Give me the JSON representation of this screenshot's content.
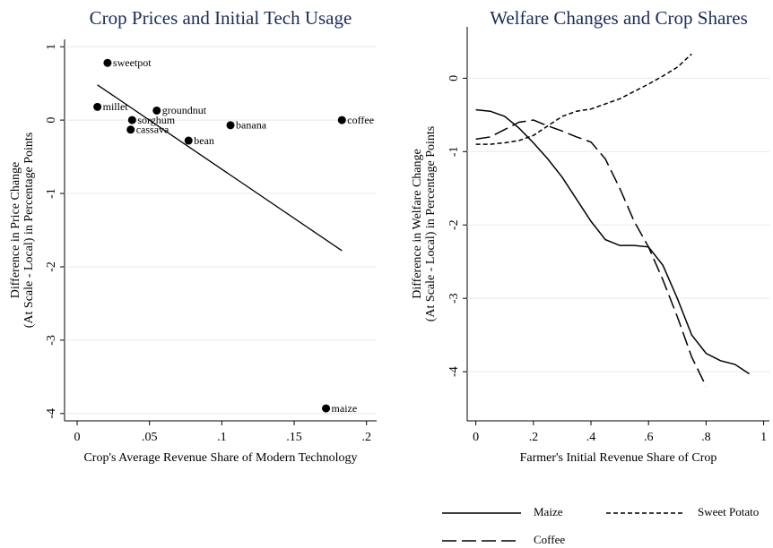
{
  "chart_data": [
    {
      "type": "scatter",
      "title": "Crop Prices and Initial Tech Usage",
      "xlabel": "Crop's Average Revenue Share of Modern Technology",
      "ylabel": [
        "Difference in Price Change",
        "(At Scale - Local) in Percentage Points"
      ],
      "labels": [
        "sweetpot",
        "millet",
        "groundnut",
        "sorghum",
        "cassava",
        "bean",
        "banana",
        "coffee",
        "maize"
      ],
      "x": [
        0.021,
        0.014,
        0.055,
        0.038,
        0.037,
        0.077,
        0.106,
        0.183,
        0.172
      ],
      "values": [
        0.78,
        0.18,
        0.13,
        0.0,
        -0.13,
        -0.28,
        -0.07,
        0.0,
        -3.93
      ],
      "color": "#000000",
      "label_color": "#8b2c2c",
      "fit_line": {
        "x": [
          0.014,
          0.183
        ],
        "values": [
          0.48,
          -1.78
        ]
      },
      "xlim": [
        -0.0087,
        0.207
      ],
      "ylim": [
        -4.1,
        1.1
      ],
      "xticks": [
        0,
        {
          "value": 0.05,
          "label": ".05"
        },
        {
          "value": 0.1,
          "label": ".1"
        },
        {
          "value": 0.15,
          "label": ".15"
        },
        {
          "value": 0.2,
          "label": ".2"
        }
      ],
      "yticks": [
        1,
        0,
        -1,
        -2,
        -3,
        -4
      ],
      "grid": true
    },
    {
      "type": "line",
      "title": "Welfare Changes and Crop Shares",
      "xlabel": "Farmer's Initial Revenue Share of Crop",
      "ylabel": [
        "Difference in Welfare Change",
        "(At Scale - Local) in Percentage Points"
      ],
      "series": [
        {
          "name": "Maize",
          "color": "#000000",
          "dash": "solid",
          "x": [
            0,
            0.05,
            0.1,
            0.15,
            0.2,
            0.25,
            0.3,
            0.35,
            0.4,
            0.45,
            0.5,
            0.55,
            0.6,
            0.65,
            0.7,
            0.75,
            0.8,
            0.85,
            0.9,
            0.95
          ],
          "values": [
            -0.43,
            -0.45,
            -0.52,
            -0.68,
            -0.88,
            -1.1,
            -1.35,
            -1.65,
            -1.95,
            -2.2,
            -2.28,
            -2.28,
            -2.3,
            -2.55,
            -3.0,
            -3.5,
            -3.75,
            -3.85,
            -3.9,
            -4.03
          ]
        },
        {
          "name": "Sweet Potato",
          "color": "#000000",
          "dash": "short",
          "x": [
            0,
            0.05,
            0.1,
            0.15,
            0.2,
            0.25,
            0.3,
            0.35,
            0.4,
            0.45,
            0.5,
            0.55,
            0.6,
            0.65,
            0.7,
            0.75
          ],
          "values": [
            -0.9,
            -0.9,
            -0.88,
            -0.85,
            -0.78,
            -0.65,
            -0.52,
            -0.45,
            -0.42,
            -0.35,
            -0.28,
            -0.18,
            -0.08,
            0.03,
            0.15,
            0.33
          ]
        },
        {
          "name": "Coffee",
          "color": "#000000",
          "dash": "long",
          "x": [
            0,
            0.05,
            0.1,
            0.15,
            0.2,
            0.25,
            0.3,
            0.35,
            0.4,
            0.45,
            0.5,
            0.55,
            0.6,
            0.65,
            0.7,
            0.75,
            0.8
          ],
          "values": [
            -0.83,
            -0.8,
            -0.7,
            -0.6,
            -0.57,
            -0.65,
            -0.72,
            -0.8,
            -0.87,
            -1.1,
            -1.5,
            -1.95,
            -2.3,
            -2.75,
            -3.25,
            -3.8,
            -4.2
          ]
        }
      ],
      "xlim": [
        -0.03,
        1.02
      ],
      "ylim": [
        -4.67,
        0.7
      ],
      "xticks": [
        0,
        {
          "value": 0.2,
          "label": ".2"
        },
        {
          "value": 0.4,
          "label": ".4"
        },
        {
          "value": 0.6,
          "label": ".6"
        },
        {
          "value": 0.8,
          "label": ".8"
        },
        1
      ],
      "yticks": [
        0,
        -1,
        -2,
        -3,
        -4
      ],
      "grid": true,
      "legend": "bottom"
    }
  ]
}
